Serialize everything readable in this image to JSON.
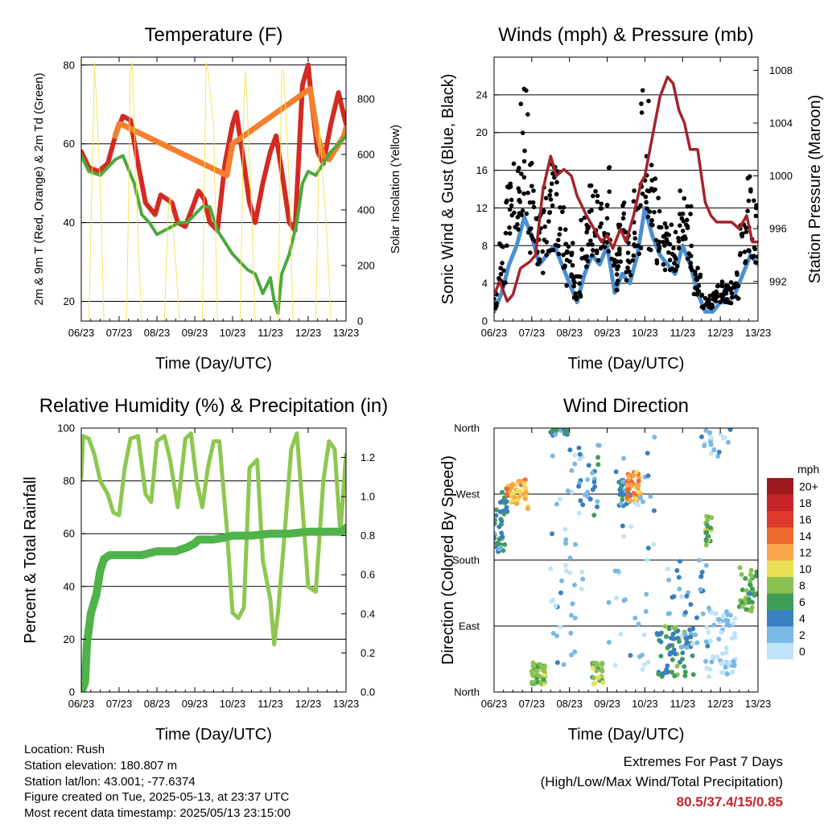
{
  "panels": {
    "temperature": {
      "title": "Temperature (F)",
      "xlabel": "Time (Day/UTC)",
      "ylabel_left": "2m & 9m T (Red, Orange) & 2m Td (Green)",
      "ylabel_right": "Solar Insolation (Yellow)"
    },
    "winds": {
      "title": "Winds (mph) & Pressure (mb)",
      "xlabel": "Time (Day/UTC)",
      "ylabel_left": "Sonic Wind & Gust (Blue, Black)",
      "ylabel_right": "Station Pressure (Maroon)"
    },
    "humidity": {
      "title": "Relative Humidity (%) & Precipitation (in)",
      "xlabel": "Time (Day/UTC)",
      "ylabel_left": "Percent & Total Rainfall"
    },
    "direction": {
      "title": "Wind Direction",
      "xlabel": "Time (Day/UTC)",
      "ylabel_left": "Direction (Colored By Speed)"
    }
  },
  "legend": {
    "unit": "mph",
    "levels": [
      "20+",
      "18",
      "16",
      "14",
      "12",
      "10",
      "8",
      "6",
      "4",
      "2",
      "0"
    ],
    "colors": [
      "#9e1a1f",
      "#c7252b",
      "#e0382b",
      "#f26b2e",
      "#f9a64a",
      "#e9df56",
      "#8cc252",
      "#3f9d5a",
      "#3a7fbf",
      "#7ab8e4",
      "#bfe3f7"
    ]
  },
  "info": {
    "location": "Location: Rush",
    "elevation": "Station elevation: 180.807 m",
    "latlon": "Station lat/lon: 43.001; -77.6374",
    "created": "Figure created on Tue, 2025-05-13, at 23:37 UTC",
    "recent": "Most recent data timestamp: 2025/05/13 23:15:00"
  },
  "extremes": {
    "line1": "Extremes For Past 7 Days",
    "line2": "(High/Low/Max Wind/Total Precipitation)",
    "values": "80.5/37.4/15/0.85"
  },
  "chart_data": [
    {
      "type": "line",
      "title": "Temperature (F)",
      "xlabel": "Time (Day/UTC)",
      "x_ticks": [
        "06/23",
        "07/23",
        "08/23",
        "09/23",
        "10/23",
        "11/23",
        "12/23",
        "13/23"
      ],
      "xlim": [
        6,
        13
      ],
      "ylabel": "2m & 9m T (Red, Orange) & 2m Td (Green)",
      "ylim": [
        15,
        82
      ],
      "y_ticks": [
        20,
        40,
        60,
        80
      ],
      "y2label": "Solar Insolation (Yellow)",
      "y2lim": [
        0,
        950
      ],
      "y2_ticks": [
        0,
        200,
        400,
        600,
        800
      ],
      "grid": "horizontal",
      "series": [
        {
          "name": "2m T",
          "color": "#d42a22",
          "axis": "left",
          "x": [
            6.0,
            6.2,
            6.45,
            6.7,
            6.9,
            7.1,
            7.3,
            7.5,
            7.7,
            7.95,
            8.1,
            8.25,
            8.4,
            8.55,
            8.75,
            8.95,
            9.1,
            9.25,
            9.4,
            9.6,
            9.8,
            10.0,
            10.1,
            10.3,
            10.45,
            10.6,
            10.8,
            11.0,
            11.15,
            11.35,
            11.5,
            11.65,
            11.85,
            12.0,
            12.1,
            12.25,
            12.4,
            12.6,
            12.8,
            13.0
          ],
          "y": [
            58,
            54,
            53,
            55,
            62,
            67,
            66,
            55,
            45,
            42,
            47,
            46,
            45,
            40,
            39,
            44,
            48,
            46,
            40,
            38,
            55,
            65,
            68,
            55,
            45,
            40,
            50,
            58,
            62,
            50,
            40,
            38,
            75,
            80,
            70,
            58,
            55,
            65,
            73,
            65
          ]
        },
        {
          "name": "9m T",
          "color": "#f3802e",
          "axis": "left",
          "x": [
            6.9,
            7.0,
            7.05,
            9.85,
            10.0,
            12.05,
            12.25,
            12.4,
            12.55,
            12.95,
            13.0
          ],
          "y": [
            62,
            65,
            65,
            52,
            60,
            74,
            62,
            57,
            56,
            62,
            64
          ]
        },
        {
          "name": "2m Td",
          "color": "#4aaa3c",
          "axis": "left",
          "x": [
            6.0,
            6.2,
            6.5,
            6.7,
            6.9,
            7.1,
            7.4,
            7.6,
            7.8,
            8.0,
            8.2,
            8.4,
            8.6,
            8.8,
            9.0,
            9.2,
            9.4,
            9.6,
            9.8,
            10.0,
            10.2,
            10.4,
            10.6,
            10.8,
            11.0,
            11.1,
            11.2,
            11.3,
            11.5,
            11.7,
            11.85,
            12.0,
            12.2,
            12.4,
            12.6,
            12.8,
            13.0
          ],
          "y": [
            57,
            53,
            52,
            54,
            56,
            57,
            50,
            42,
            40,
            37,
            38,
            39,
            40,
            40,
            42,
            44,
            44,
            38,
            35,
            32,
            30,
            28,
            27,
            22,
            26,
            20,
            17,
            27,
            32,
            40,
            50,
            53,
            52,
            55,
            58,
            60,
            62
          ]
        },
        {
          "name": "Solar Insolation",
          "color": "#f5e24a",
          "axis": "right",
          "x": [
            6.0,
            6.2,
            6.3,
            6.35,
            6.5,
            6.6,
            6.85,
            7.0,
            7.2,
            7.3,
            7.35,
            7.5,
            7.6,
            7.85,
            8.0,
            8.2,
            8.3,
            8.35,
            8.5,
            8.6,
            8.85,
            9.0,
            9.2,
            9.3,
            9.35,
            9.5,
            9.6,
            9.85,
            10.0,
            10.2,
            10.3,
            10.35,
            10.5,
            10.6,
            10.85,
            11.0,
            11.2,
            11.3,
            11.35,
            11.5,
            11.6,
            11.85,
            12.0,
            12.2,
            12.3,
            12.35,
            12.5,
            12.6,
            12.85,
            13.0
          ],
          "y": [
            0,
            0,
            600,
            930,
            500,
            0,
            0,
            0,
            0,
            900,
            930,
            300,
            0,
            0,
            0,
            0,
            400,
            450,
            200,
            0,
            0,
            0,
            0,
            930,
            900,
            700,
            0,
            0,
            0,
            0,
            800,
            900,
            400,
            0,
            0,
            0,
            0,
            900,
            900,
            500,
            0,
            0,
            0,
            0,
            700,
            600,
            300,
            0,
            0,
            0
          ]
        }
      ]
    },
    {
      "type": "line",
      "title": "Winds (mph) & Pressure (mb)",
      "xlabel": "Time (Day/UTC)",
      "x_ticks": [
        "06/23",
        "07/23",
        "08/23",
        "09/23",
        "10/23",
        "11/23",
        "12/23",
        "13/23"
      ],
      "xlim": [
        6,
        13
      ],
      "ylabel": "Sonic Wind & Gust (Blue, Black)",
      "ylim": [
        0,
        28
      ],
      "y_ticks": [
        0,
        4,
        8,
        12,
        16,
        20,
        24
      ],
      "y2label": "Station Pressure (Maroon)",
      "y2lim": [
        989,
        1009
      ],
      "y2_ticks": [
        992,
        996,
        1000,
        1004,
        1008
      ],
      "grid": "horizontal",
      "series": [
        {
          "name": "Sonic Wind",
          "color": "#4a90d2",
          "axis": "left",
          "x": [
            6.0,
            6.2,
            6.4,
            6.6,
            6.8,
            7.0,
            7.2,
            7.4,
            7.6,
            7.8,
            8.0,
            8.2,
            8.4,
            8.6,
            8.8,
            9.0,
            9.2,
            9.4,
            9.6,
            9.8,
            10.0,
            10.2,
            10.4,
            10.6,
            10.8,
            11.0,
            11.2,
            11.4,
            11.6,
            11.8,
            12.0,
            12.2,
            12.4,
            12.6,
            12.8,
            13.0
          ],
          "y": [
            1,
            3,
            6,
            8,
            11,
            9,
            6,
            7,
            8,
            6,
            4,
            2,
            5,
            7,
            6,
            8,
            3,
            5,
            4,
            7,
            12,
            9,
            7,
            6,
            5,
            8,
            6,
            3,
            1,
            1,
            2,
            2,
            3,
            5,
            7,
            6
          ]
        },
        {
          "name": "Gust",
          "color": "#000000",
          "axis": "left",
          "x": [
            6.0,
            6.2,
            6.4,
            6.6,
            6.8,
            7.0,
            7.2,
            7.4,
            7.6,
            7.8,
            8.0,
            8.2,
            8.4,
            8.6,
            8.8,
            9.0,
            9.2,
            9.4,
            9.6,
            9.8,
            10.0,
            10.2,
            10.4,
            10.6,
            10.8,
            11.0,
            11.2,
            11.4,
            11.6,
            11.8,
            12.0,
            12.2,
            12.4,
            12.6,
            12.8,
            13.0
          ],
          "y": [
            3,
            8,
            14,
            18,
            24,
            16,
            11,
            14,
            16,
            12,
            8,
            5,
            11,
            15,
            13,
            16,
            7,
            12,
            9,
            14,
            24,
            16,
            13,
            12,
            10,
            14,
            12,
            6,
            3,
            3,
            4,
            4,
            5,
            10,
            15,
            12
          ]
        },
        {
          "name": "Station Pressure",
          "color": "#a3242b",
          "axis": "right",
          "x": [
            6.0,
            6.15,
            6.35,
            6.5,
            6.7,
            6.95,
            7.1,
            7.3,
            7.5,
            7.65,
            7.85,
            8.05,
            8.2,
            8.45,
            8.65,
            8.85,
            9.0,
            9.15,
            9.35,
            9.5,
            9.7,
            9.9,
            10.0,
            10.2,
            10.4,
            10.6,
            10.75,
            10.9,
            11.05,
            11.2,
            11.4,
            11.6,
            11.75,
            11.9,
            12.1,
            12.3,
            12.5,
            12.7,
            12.85,
            13.0
          ],
          "y": [
            991,
            992,
            990.5,
            991,
            993,
            993.5,
            994,
            999,
            1001.5,
            1000,
            1000.5,
            1000,
            998.5,
            997,
            996,
            995,
            995.5,
            994.5,
            996,
            995,
            997,
            999.5,
            1000,
            1003,
            1006,
            1007.5,
            1007,
            1005,
            1004,
            1002,
            1002,
            998,
            997,
            996.5,
            996.5,
            996.5,
            996,
            997,
            995,
            995
          ]
        }
      ]
    },
    {
      "type": "line",
      "title": "Relative Humidity (%) & Precipitation (in)",
      "xlabel": "Time (Day/UTC)",
      "x_ticks": [
        "06/23",
        "07/23",
        "08/23",
        "09/23",
        "10/23",
        "11/23",
        "12/23",
        "13/23"
      ],
      "xlim": [
        6,
        13
      ],
      "ylabel": "Percent & Total Rainfall",
      "ylim": [
        0,
        100
      ],
      "y_ticks": [
        0,
        20,
        40,
        60,
        80,
        100
      ],
      "y2lim": [
        0,
        1.35
      ],
      "y2_ticks": [
        0.0,
        0.2,
        0.4,
        0.6,
        0.8,
        1.0,
        1.2
      ],
      "grid": "horizontal",
      "series": [
        {
          "name": "Relative Humidity",
          "color": "#8cc84f",
          "axis": "left",
          "x": [
            6.0,
            6.05,
            6.2,
            6.35,
            6.5,
            6.7,
            6.85,
            7.0,
            7.15,
            7.3,
            7.5,
            7.7,
            7.85,
            8.0,
            8.2,
            8.35,
            8.55,
            8.75,
            8.9,
            9.05,
            9.2,
            9.35,
            9.5,
            9.65,
            9.85,
            10.0,
            10.15,
            10.3,
            10.45,
            10.65,
            10.8,
            11.0,
            11.1,
            11.2,
            11.35,
            11.55,
            11.7,
            11.85,
            12.0,
            12.2,
            12.4,
            12.55,
            12.7,
            12.85,
            13.0
          ],
          "y": [
            81,
            97,
            96,
            90,
            80,
            75,
            68,
            67,
            85,
            96,
            97,
            75,
            72,
            95,
            97,
            88,
            70,
            96,
            98,
            80,
            70,
            85,
            95,
            95,
            62,
            30,
            28,
            32,
            85,
            88,
            50,
            35,
            18,
            30,
            55,
            92,
            98,
            70,
            40,
            38,
            80,
            95,
            92,
            60,
            90
          ]
        },
        {
          "name": "Total Rainfall",
          "color": "#4fb24a",
          "axis": "right",
          "x": [
            6.0,
            6.1,
            6.15,
            6.25,
            6.4,
            6.5,
            6.6,
            6.75,
            7.0,
            7.3,
            7.6,
            7.8,
            8.0,
            8.5,
            8.8,
            9.0,
            9.1,
            9.5,
            9.8,
            10.0,
            10.5,
            11.0,
            11.5,
            12.0,
            12.5,
            12.9,
            13.0
          ],
          "y": [
            0.0,
            0.05,
            0.25,
            0.4,
            0.5,
            0.62,
            0.68,
            0.7,
            0.7,
            0.7,
            0.7,
            0.71,
            0.72,
            0.72,
            0.74,
            0.76,
            0.78,
            0.78,
            0.79,
            0.8,
            0.8,
            0.81,
            0.81,
            0.82,
            0.82,
            0.82,
            0.84
          ]
        }
      ]
    },
    {
      "type": "scatter",
      "title": "Wind Direction",
      "xlabel": "Time (Day/UTC)",
      "x_ticks": [
        "06/23",
        "07/23",
        "08/23",
        "09/23",
        "10/23",
        "11/23",
        "12/23",
        "13/23"
      ],
      "xlim": [
        6,
        13
      ],
      "ylabel": "Direction (Colored By Speed)",
      "ylim": [
        0,
        360
      ],
      "y_ticks": [
        "North",
        "East",
        "South",
        "West",
        "North"
      ],
      "grid": "horizontal",
      "legend": "right",
      "clusters": [
        {
          "x": [
            6.0,
            6.35
          ],
          "y": [
            190,
            280
          ],
          "speed": 5,
          "n": 40
        },
        {
          "x": [
            6.35,
            6.9
          ],
          "y": [
            250,
            290
          ],
          "speed": 12,
          "n": 45
        },
        {
          "x": [
            7.0,
            7.35
          ],
          "y": [
            10,
            40
          ],
          "speed": 8,
          "n": 45
        },
        {
          "x": [
            7.4,
            7.95
          ],
          "y": [
            350,
            360
          ],
          "speed": 5,
          "n": 18
        },
        {
          "x": [
            7.5,
            8.4
          ],
          "y": [
            30,
            350
          ],
          "speed": 2,
          "n": 45
        },
        {
          "x": [
            8.2,
            8.8
          ],
          "y": [
            240,
            340
          ],
          "speed": 4,
          "n": 25
        },
        {
          "x": [
            8.6,
            8.9
          ],
          "y": [
            10,
            40
          ],
          "speed": 8,
          "n": 30
        },
        {
          "x": [
            9.3,
            9.6
          ],
          "y": [
            250,
            290
          ],
          "speed": 5,
          "n": 30
        },
        {
          "x": [
            9.5,
            9.9
          ],
          "y": [
            260,
            300
          ],
          "speed": 13,
          "n": 40
        },
        {
          "x": [
            9.0,
            10.3
          ],
          "y": [
            30,
            350
          ],
          "speed": 2,
          "n": 40
        },
        {
          "x": [
            10.3,
            11.3
          ],
          "y": [
            20,
            90
          ],
          "speed": 6,
          "n": 60
        },
        {
          "x": [
            10.6,
            11.8
          ],
          "y": [
            60,
            180
          ],
          "speed": 3,
          "n": 40
        },
        {
          "x": [
            11.6,
            11.8
          ],
          "y": [
            200,
            240
          ],
          "speed": 8,
          "n": 20
        },
        {
          "x": [
            11.6,
            12.4
          ],
          "y": [
            20,
            110
          ],
          "speed": 1,
          "n": 60
        },
        {
          "x": [
            12.5,
            13.0
          ],
          "y": [
            110,
            170
          ],
          "speed": 7,
          "n": 40
        },
        {
          "x": [
            11.5,
            12.3
          ],
          "y": [
            320,
            360
          ],
          "speed": 2,
          "n": 20
        }
      ]
    }
  ]
}
